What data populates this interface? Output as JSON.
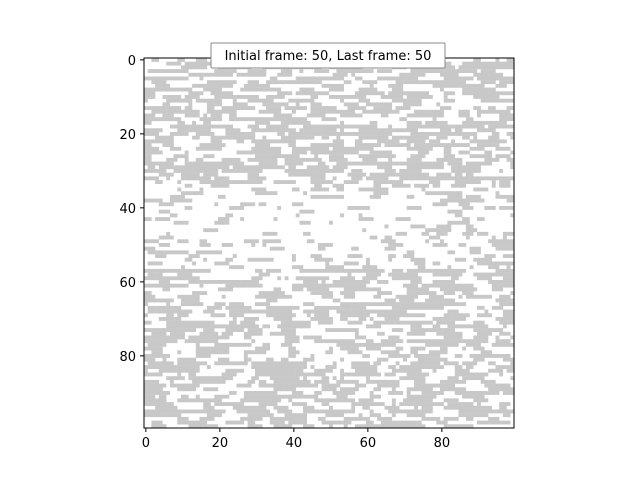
{
  "chart_data": {
    "type": "heatmap",
    "title": "Initial frame: 50, Last frame: 50",
    "xlabel": "",
    "ylabel": "",
    "grid_size": [
      100,
      100
    ],
    "xlim": [
      -0.5,
      99.5
    ],
    "ylim": [
      99.5,
      -0.5
    ],
    "x_ticks": [
      0,
      20,
      40,
      60,
      80
    ],
    "y_ticks": [
      0,
      20,
      40,
      60,
      80
    ],
    "grid": false,
    "colors": {
      "filled": "#c8c8c8",
      "empty": "#ffffff",
      "axis": "#000000"
    },
    "pattern_description": "binary cellular grid; grey = occupied, white = empty; lighter/empty band around rows 35-55 and a clearer area near the center-left around rows 55-65"
  }
}
